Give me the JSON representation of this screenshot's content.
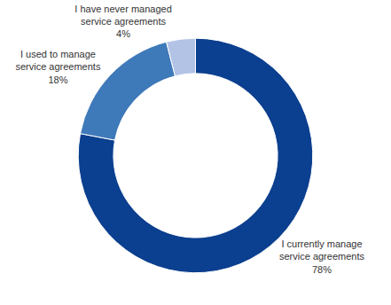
{
  "chart_data": {
    "type": "pie",
    "categories": [
      "I currently manage service agreements",
      "I used to manage service agreements",
      "I have never managed service agreements"
    ],
    "values": [
      78,
      18,
      4
    ],
    "value_labels": [
      "78%",
      "18%",
      "4%"
    ],
    "colors": [
      "#0b3f8f",
      "#3e79b9",
      "#b3c3e6"
    ],
    "data_labels": true
  }
}
